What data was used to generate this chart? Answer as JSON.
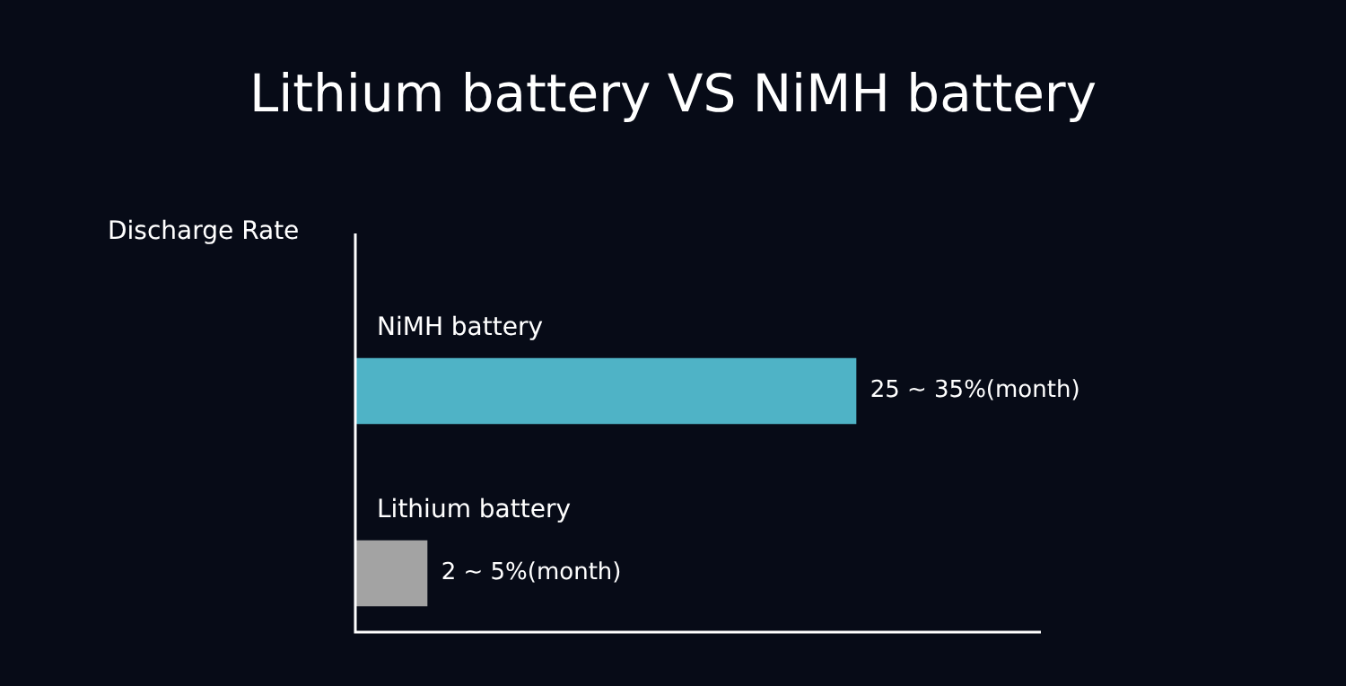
{
  "chart_data": {
    "type": "bar",
    "orientation": "horizontal",
    "tick_labels": false,
    "title": "Lithium battery VS NiMH battery",
    "ylabel": "Discharge Rate",
    "categories": [
      "NiMH battery",
      "Lithium battery"
    ],
    "values": [
      35,
      5
    ],
    "colors": [
      "#4fb3c6",
      "#a3a3a3"
    ],
    "value_labels": [
      "25 ~ 35%(month)",
      "2 ~ 5%(month)"
    ],
    "legend": false
  }
}
